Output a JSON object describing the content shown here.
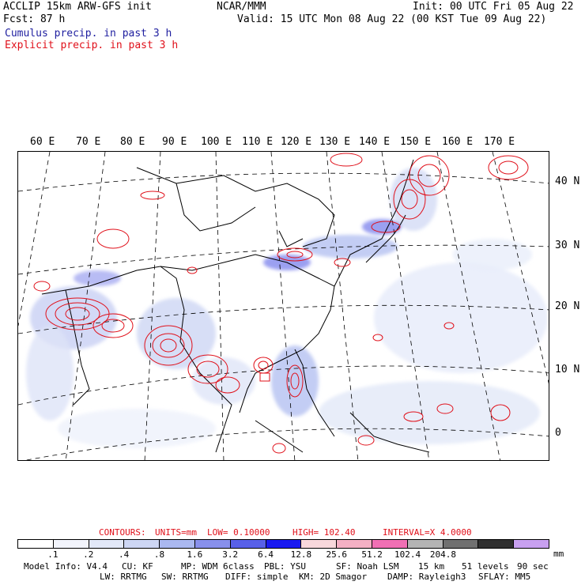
{
  "header": {
    "title_left": "ACCLIP 15km ARW-GFS init",
    "center": "NCAR/MMM",
    "init": "Init: 00 UTC Fri 05 Aug 22",
    "fcst": "Fcst:   87 h",
    "valid": "Valid: 15 UTC Mon 08 Aug 22 (00 KST Tue 09 Aug 22)",
    "cumulus": "Cumulus precip. in past 3 h",
    "explicit": "Explicit precip. in past 3 h"
  },
  "map": {
    "lon_labels": [
      "60 E",
      "70 E",
      "80 E",
      "90 E",
      "100 E",
      "110 E",
      "120 E",
      "130 E",
      "140 E",
      "150 E",
      "160 E",
      "170 E"
    ],
    "lat_labels": [
      "40 N",
      "30 N",
      "20 N",
      "10 N",
      "0"
    ]
  },
  "contours": {
    "label": "CONTOURS:",
    "units": "UNITS=mm",
    "low": "LOW=  0.10000",
    "high": "HIGH=  102.40",
    "interval": "INTERVAL=X  4.0000"
  },
  "legend": {
    "colors": [
      "#ffffff",
      "#f2f4fc",
      "#e2e8f8",
      "#cdd6f4",
      "#aab8f0",
      "#8890ec",
      "#5860e8",
      "#1a1af0",
      "#f8d8dc",
      "#f4b0c4",
      "#f070b4",
      "#b4b4b4",
      "#707070",
      "#303030",
      "#c8a0f0"
    ],
    "labels": [
      ".1",
      ".2",
      ".4",
      ".8",
      "1.6",
      "3.2",
      "6.4",
      "12.8",
      "25.6",
      "51.2",
      "102.4",
      "204.8"
    ],
    "unit": "mm"
  },
  "footer": {
    "model_info": "Model Info: V4.4",
    "cu": "CU: KF",
    "mp": "MP: WDM 6class",
    "pbl": "PBL: YSU",
    "sf": "SF: Noah LSM",
    "res": "15 km",
    "levels": "51 levels",
    "dt": "90 sec",
    "lw": "LW: RRTMG",
    "sw": "SW: RRTMG",
    "diff": "DIFF: simple",
    "km": "KM: 2D Smagor",
    "damp": "DAMP: Rayleigh3",
    "sflay": "SFLAY: MM5"
  }
}
